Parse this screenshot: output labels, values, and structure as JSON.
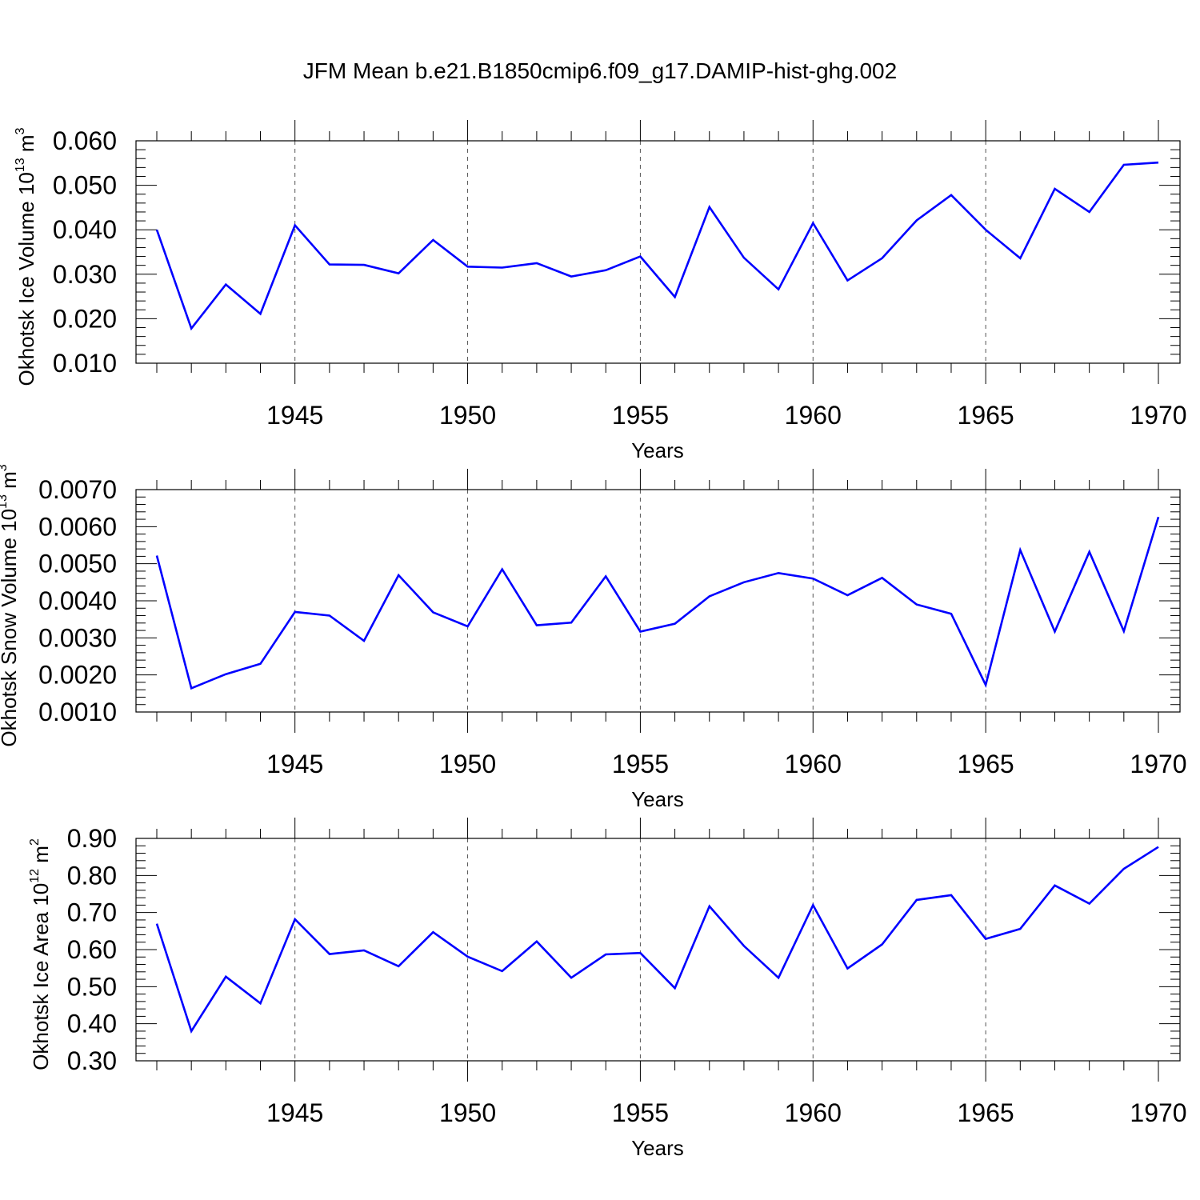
{
  "title": "JFM Mean b.e21.B1850cmip6.f09_g17.DAMIP-hist-ghg.002",
  "colors": {
    "series": "#0000ff",
    "axis": "#000000",
    "grid": "#555555"
  },
  "chart_data": [
    {
      "type": "line",
      "ylabel": {
        "text": "Okhotsk Ice Volume 10",
        "sup": "13",
        "unit": " m",
        "unit_sup": "3"
      },
      "xlabel": "Years",
      "x": [
        1941,
        1942,
        1943,
        1944,
        1945,
        1946,
        1947,
        1948,
        1949,
        1950,
        1951,
        1952,
        1953,
        1954,
        1955,
        1956,
        1957,
        1958,
        1959,
        1960,
        1961,
        1962,
        1963,
        1964,
        1965,
        1966,
        1967,
        1968,
        1969,
        1970
      ],
      "y": [
        0.04,
        0.0178,
        0.0277,
        0.0211,
        0.041,
        0.0322,
        0.0321,
        0.0302,
        0.0377,
        0.0317,
        0.0315,
        0.0325,
        0.0295,
        0.0309,
        0.034,
        0.0249,
        0.0451,
        0.0337,
        0.0266,
        0.0415,
        0.0286,
        0.0336,
        0.0421,
        0.0478,
        0.04,
        0.0336,
        0.0492,
        0.044,
        0.0546,
        0.0551
      ],
      "xlim": [
        1941,
        1970
      ],
      "ylim": [
        0.01,
        0.06
      ],
      "yticks": [
        "0.010",
        "0.020",
        "0.030",
        "0.040",
        "0.050",
        "0.060"
      ],
      "xticks": [
        "1945",
        "1950",
        "1955",
        "1960",
        "1965",
        "1970"
      ],
      "grid": "dashed vertical lines at 1945, 1950, 1955, 1960, 1965"
    },
    {
      "type": "line",
      "ylabel": {
        "text": "Okhotsk Snow Volume 10",
        "sup": "13",
        "unit": " m",
        "unit_sup": "3"
      },
      "xlabel": "Years",
      "x": [
        1941,
        1942,
        1943,
        1944,
        1945,
        1946,
        1947,
        1948,
        1949,
        1950,
        1951,
        1952,
        1953,
        1954,
        1955,
        1956,
        1957,
        1958,
        1959,
        1960,
        1961,
        1962,
        1963,
        1964,
        1965,
        1966,
        1967,
        1968,
        1969,
        1970
      ],
      "y": [
        0.00522,
        0.00164,
        0.00202,
        0.0023,
        0.0037,
        0.0036,
        0.00292,
        0.00469,
        0.00369,
        0.00331,
        0.00485,
        0.00334,
        0.00341,
        0.00466,
        0.00317,
        0.00338,
        0.00412,
        0.0045,
        0.00475,
        0.0046,
        0.00415,
        0.00462,
        0.0039,
        0.00365,
        0.00173,
        0.00537,
        0.00317,
        0.00532,
        0.00318,
        0.00626
      ],
      "xlim": [
        1941,
        1970
      ],
      "ylim": [
        0.001,
        0.007
      ],
      "yticks": [
        "0.0010",
        "0.0020",
        "0.0030",
        "0.0040",
        "0.0050",
        "0.0060",
        "0.0070"
      ],
      "xticks": [
        "1945",
        "1950",
        "1955",
        "1960",
        "1965",
        "1970"
      ],
      "grid": "dashed vertical lines at 1945, 1950, 1955, 1960, 1965"
    },
    {
      "type": "line",
      "ylabel": {
        "text": "Okhotsk Ice Area 10",
        "sup": "12",
        "unit": " m",
        "unit_sup": "2"
      },
      "xlabel": "Years",
      "x": [
        1941,
        1942,
        1943,
        1944,
        1945,
        1946,
        1947,
        1948,
        1949,
        1950,
        1951,
        1952,
        1953,
        1954,
        1955,
        1956,
        1957,
        1958,
        1959,
        1960,
        1961,
        1962,
        1963,
        1964,
        1965,
        1966,
        1967,
        1968,
        1969,
        1970
      ],
      "y": [
        0.67,
        0.38,
        0.527,
        0.455,
        0.682,
        0.588,
        0.598,
        0.555,
        0.647,
        0.581,
        0.542,
        0.622,
        0.524,
        0.587,
        0.591,
        0.496,
        0.717,
        0.61,
        0.524,
        0.72,
        0.549,
        0.614,
        0.734,
        0.747,
        0.629,
        0.656,
        0.773,
        0.724,
        0.818,
        0.877
      ],
      "xlim": [
        1941,
        1970
      ],
      "ylim": [
        0.3,
        0.9
      ],
      "yticks": [
        "0.30",
        "0.40",
        "0.50",
        "0.60",
        "0.70",
        "0.80",
        "0.90"
      ],
      "xticks": [
        "1945",
        "1950",
        "1955",
        "1960",
        "1965",
        "1970"
      ],
      "grid": "dashed vertical lines at 1945, 1950, 1955, 1960, 1965"
    }
  ]
}
